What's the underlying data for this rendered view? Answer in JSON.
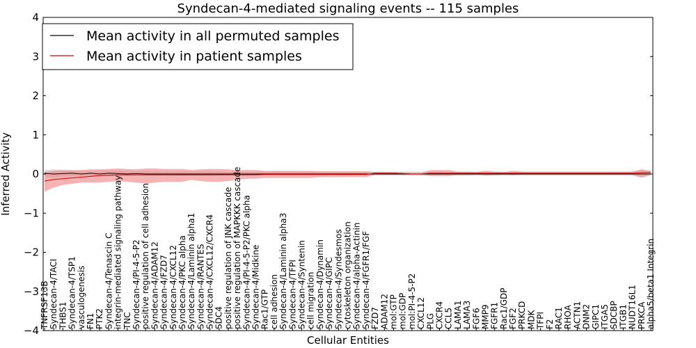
{
  "chart_data": {
    "type": "line",
    "title": "Syndecan-4-mediated signaling events -- 115 samples",
    "xlabel": "Cellular Entities",
    "ylabel": "Inferred Activity",
    "ylim": [
      -4,
      4
    ],
    "yticks": [
      -4,
      -3,
      -2,
      -1,
      0,
      1,
      2,
      3,
      4
    ],
    "ytick_labels": [
      "−4",
      "−3",
      "−2",
      "−1",
      "0",
      "1",
      "2",
      "3",
      "4"
    ],
    "grid": false,
    "legend_position": "top-left",
    "categories": [
      "TNFRSF13B",
      "Syndecan-4/TACI",
      "THBS1",
      "Syndecan-4/TSP1",
      "vasculogenesis",
      "FN1",
      "PTK2",
      "Syndecan-4/Tenascin C",
      "integrin-mediated signaling pathway",
      "TNC",
      "Syndecan-4/PI-4-5-P2",
      "positive regulation of cell adhesion",
      "Syndecan-4/ADAM12",
      "Syndecan-4/FZD7",
      "Syndecan-4/CXCL12",
      "Syndecan-4/PKC alpha",
      "Syndecan-4/Laminin alpha1",
      "Syndecan-4/RANTES",
      "Syndecan-4/CXCL12/CXCR4",
      "SDC4",
      "positive regulation of JNK cascade",
      "positive regulation of MAPKKK cascade",
      "Syndecan-4/PI-4-5-P2/PKC alpha",
      "Syndecan-4/Midkine",
      "Rac1/GTP",
      "cell adhesion",
      "Syndecan-4/Laminin alpha3",
      "Syndecan-4/TFPI",
      "Syndecan-4/Syntenin",
      "cell migration",
      "Syndecan-4/Dynamin",
      "Syndecan-4/GIPC",
      "Syndecan-4/Syndesmos",
      "cytoskeleton organization",
      "Syndecan-4/alpha-Actinin",
      "Syndecan-4/FGFR1/FGF",
      "FZD7",
      "ADAM12",
      "mol:GTP",
      "mol:GDP",
      "mol:PI-4-5-P2",
      "CXCL12",
      "PLG",
      "CXCR4",
      "CCL5",
      "LAMA1",
      "LAMA3",
      "FGF6",
      "MMP9",
      "FGFR1",
      "Rac1/GDP",
      "FGF2",
      "PRKCD",
      "MDK",
      "TFPI",
      "F2",
      "RAC1",
      "RHOA",
      "ACTN1",
      "DNM2",
      "GIPC1",
      "ITGA5",
      "SDCBP",
      "ITGB1",
      "NUDT16L1",
      "PRKCA",
      "alpha5/beta1 Integrin"
    ],
    "series": [
      {
        "name": "Mean activity in all permuted samples",
        "color": "#000000",
        "values": [
          0.02,
          0.0,
          0.01,
          0.02,
          0.0,
          0.02,
          0.0,
          0.02,
          0.01,
          0.0,
          0.01,
          0.0,
          0.0,
          0.0,
          0.0,
          0.0,
          0.0,
          0.0,
          0.0,
          0.0,
          0.0,
          0.0,
          0.0,
          0.0,
          0.0,
          0.0,
          0.0,
          0.0,
          0.0,
          0.0,
          0.0,
          0.0,
          0.0,
          0.0,
          0.0,
          0.0,
          0.0,
          0.0,
          0.0,
          0.0,
          0.0,
          0.0,
          0.0,
          0.0,
          0.0,
          0.0,
          0.0,
          0.0,
          0.0,
          0.0,
          0.0,
          0.0,
          0.0,
          0.0,
          0.0,
          0.0,
          0.0,
          0.0,
          0.0,
          0.0,
          0.0,
          0.0,
          0.0,
          0.0,
          0.0,
          0.0,
          0.0
        ],
        "band_low": [
          -0.07,
          -0.1,
          -0.07,
          -0.06,
          -0.05,
          -0.05,
          -0.05,
          -0.06,
          -0.06,
          -0.05,
          -0.05,
          -0.05,
          -0.05,
          -0.05,
          -0.05,
          -0.05,
          -0.05,
          -0.05,
          -0.05,
          -0.05,
          -0.04,
          -0.04,
          -0.04,
          -0.04,
          -0.04,
          -0.04,
          -0.04,
          -0.04,
          -0.04,
          -0.04,
          -0.04,
          -0.04,
          -0.04,
          -0.04,
          -0.04,
          -0.04,
          -0.04,
          -0.04,
          -0.04,
          -0.04,
          -0.04,
          -0.04,
          -0.04,
          -0.04,
          -0.04,
          -0.04,
          -0.04,
          -0.04,
          -0.04,
          -0.04,
          -0.04,
          -0.04,
          -0.04,
          -0.04,
          -0.04,
          -0.04,
          -0.04,
          -0.04,
          -0.04,
          -0.04,
          -0.04,
          -0.04,
          -0.04,
          -0.04,
          -0.04,
          -0.1,
          -0.04
        ],
        "band_high": [
          0.1,
          0.12,
          0.1,
          0.09,
          0.08,
          0.08,
          0.08,
          0.09,
          0.09,
          0.08,
          0.08,
          0.08,
          0.07,
          0.07,
          0.07,
          0.07,
          0.07,
          0.07,
          0.07,
          0.07,
          0.06,
          0.06,
          0.06,
          0.06,
          0.06,
          0.06,
          0.06,
          0.06,
          0.06,
          0.06,
          0.06,
          0.06,
          0.06,
          0.06,
          0.06,
          0.06,
          0.06,
          0.06,
          0.06,
          0.06,
          0.06,
          0.06,
          0.06,
          0.06,
          0.06,
          0.06,
          0.06,
          0.06,
          0.06,
          0.06,
          0.06,
          0.06,
          0.06,
          0.06,
          0.06,
          0.06,
          0.06,
          0.06,
          0.06,
          0.06,
          0.06,
          0.06,
          0.06,
          0.06,
          0.06,
          0.1,
          0.06
        ]
      },
      {
        "name": "Mean activity in patient samples",
        "color": "#cc0000",
        "values": [
          -0.18,
          -0.14,
          -0.12,
          -0.1,
          -0.08,
          -0.06,
          -0.04,
          -0.03,
          -0.02,
          -0.02,
          -0.02,
          -0.02,
          -0.02,
          -0.02,
          -0.02,
          -0.02,
          -0.02,
          -0.02,
          -0.02,
          -0.02,
          -0.02,
          -0.02,
          -0.02,
          -0.02,
          -0.01,
          -0.01,
          -0.01,
          -0.01,
          -0.01,
          -0.01,
          -0.01,
          -0.01,
          -0.01,
          -0.01,
          -0.01,
          -0.01,
          0.02,
          0.02,
          0.02,
          0.01,
          0.0,
          0.0,
          0.02,
          0.02,
          0.02,
          0.02,
          0.02,
          0.02,
          0.02,
          0.02,
          0.02,
          0.02,
          0.02,
          0.02,
          0.02,
          0.02,
          0.02,
          0.02,
          0.02,
          0.02,
          0.02,
          0.02,
          0.02,
          0.02,
          0.02,
          0.03,
          0.04
        ],
        "band_low": [
          -0.45,
          -0.35,
          -0.28,
          -0.25,
          -0.22,
          -0.22,
          -0.22,
          -0.2,
          -0.18,
          -0.2,
          -0.22,
          -0.24,
          -0.22,
          -0.2,
          -0.2,
          -0.2,
          -0.15,
          -0.18,
          -0.2,
          -0.2,
          -0.18,
          -0.15,
          -0.12,
          -0.12,
          -0.1,
          -0.1,
          -0.1,
          -0.1,
          -0.1,
          -0.1,
          -0.08,
          -0.08,
          -0.08,
          -0.08,
          -0.08,
          -0.08,
          -0.02,
          -0.02,
          -0.02,
          -0.02,
          -0.02,
          -0.02,
          -0.05,
          -0.05,
          -0.05,
          -0.03,
          -0.03,
          -0.02,
          -0.04,
          -0.03,
          -0.02,
          -0.03,
          -0.02,
          -0.02,
          -0.02,
          -0.02,
          -0.02,
          -0.02,
          -0.02,
          -0.02,
          -0.02,
          -0.02,
          -0.02,
          -0.02,
          -0.02,
          -0.08,
          -0.02
        ],
        "band_high": [
          0.05,
          0.08,
          0.1,
          0.1,
          0.1,
          0.12,
          0.12,
          0.13,
          0.14,
          0.13,
          0.12,
          0.14,
          0.14,
          0.13,
          0.13,
          0.13,
          0.1,
          0.12,
          0.13,
          0.13,
          0.12,
          0.1,
          0.1,
          0.1,
          0.08,
          0.08,
          0.08,
          0.08,
          0.08,
          0.08,
          0.07,
          0.07,
          0.07,
          0.07,
          0.07,
          0.07,
          0.05,
          0.05,
          0.05,
          0.04,
          0.03,
          0.03,
          0.1,
          0.1,
          0.1,
          0.06,
          0.06,
          0.05,
          0.08,
          0.06,
          0.05,
          0.08,
          0.06,
          0.06,
          0.06,
          0.06,
          0.06,
          0.06,
          0.06,
          0.06,
          0.06,
          0.06,
          0.06,
          0.06,
          0.06,
          0.12,
          0.08
        ]
      }
    ]
  }
}
